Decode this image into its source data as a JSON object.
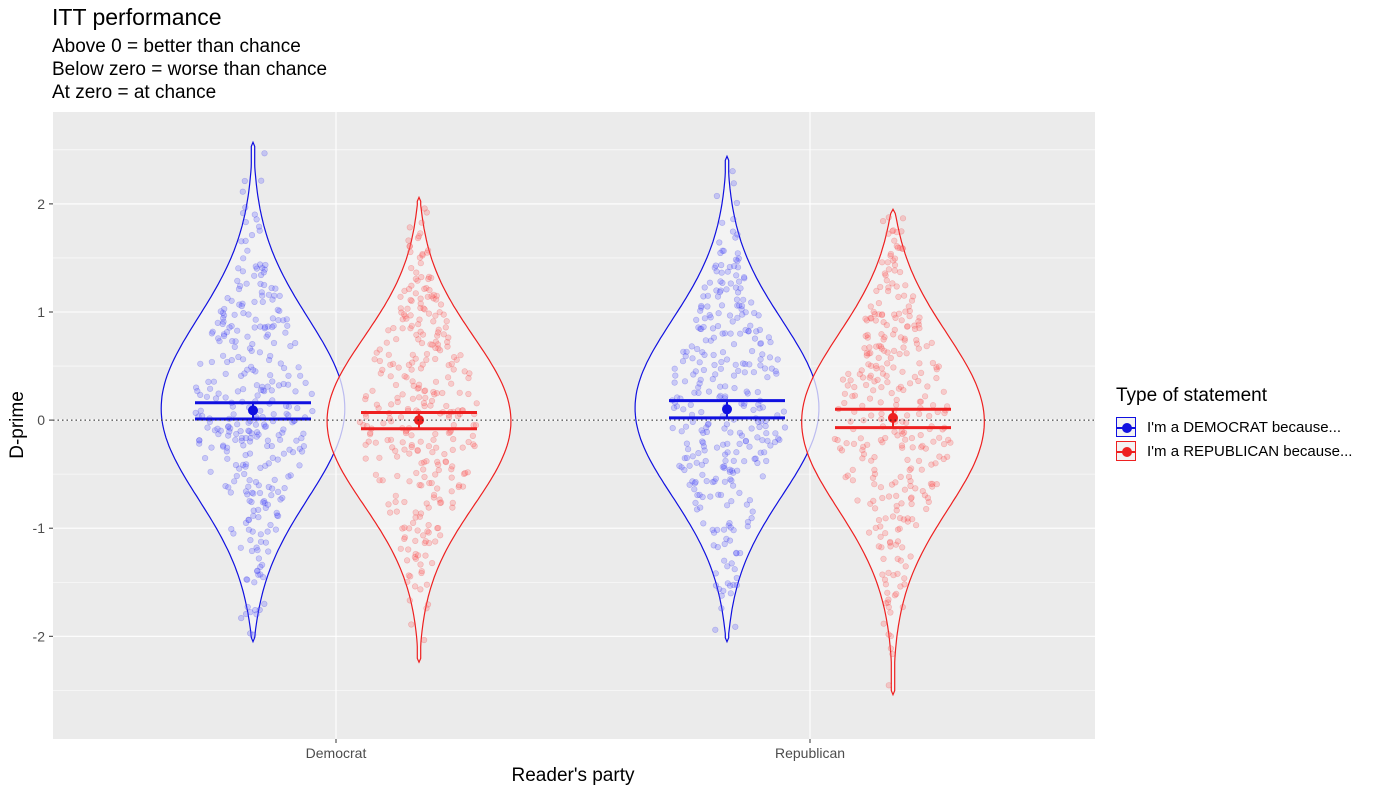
{
  "chart_data": {
    "type": "violin",
    "title": "ITT performance",
    "subtitle_lines": [
      "Above 0 = better than chance",
      "Below zero = worse than chance",
      "At zero = at chance"
    ],
    "xlabel": "Reader's party",
    "ylabel": "D-prime",
    "categories": [
      "Democrat",
      "Republican"
    ],
    "ylim": [
      -2.95,
      2.85
    ],
    "yticks": [
      -2,
      -1,
      0,
      1,
      2
    ],
    "ytick_labels": [
      "-2",
      "-1",
      "0",
      "1",
      "2"
    ],
    "reference_line": 0,
    "grid": true,
    "legend": {
      "title": "Type of statement",
      "position": "right"
    },
    "series": [
      {
        "name": "I'm a DEMOCRAT because...",
        "color": "#1010e0",
        "point_color": "#6a6aff",
        "summary": [
          {
            "category": "Democrat",
            "mean": 0.09,
            "ci_low": 0.01,
            "ci_high": 0.16,
            "min": -2.05,
            "max": 2.57,
            "n_points": 330
          },
          {
            "category": "Republican",
            "mean": 0.1,
            "ci_low": 0.02,
            "ci_high": 0.18,
            "min": -2.05,
            "max": 2.44,
            "n_points": 330
          }
        ]
      },
      {
        "name": "I'm a REPUBLICAN because...",
        "color": "#ee2020",
        "point_color": "#ff7070",
        "summary": [
          {
            "category": "Democrat",
            "mean": 0.0,
            "ci_low": -0.08,
            "ci_high": 0.07,
            "min": -2.24,
            "max": 2.06,
            "n_points": 330
          },
          {
            "category": "Republican",
            "mean": 0.02,
            "ci_low": -0.07,
            "ci_high": 0.1,
            "min": -2.54,
            "max": 1.95,
            "n_points": 330
          }
        ]
      }
    ]
  }
}
